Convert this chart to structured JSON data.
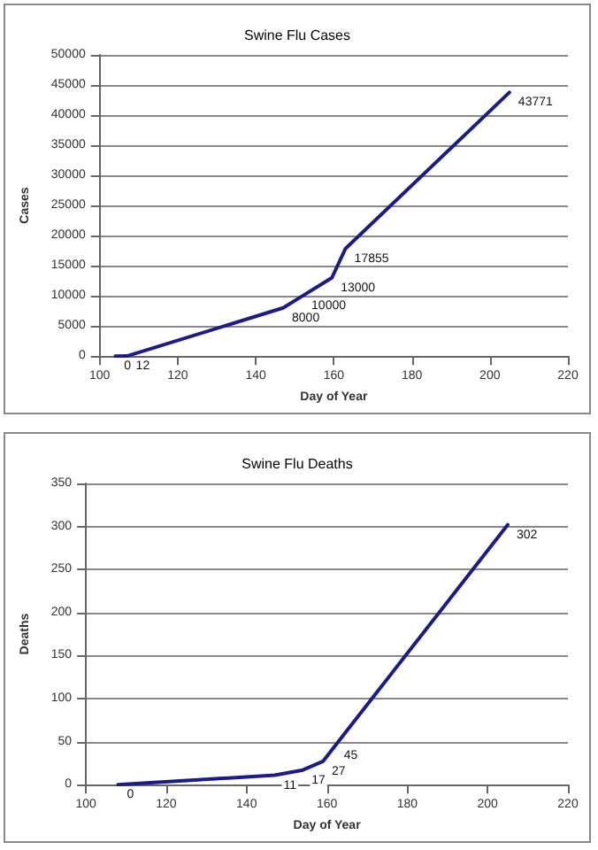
{
  "chart_data": [
    {
      "type": "line",
      "title": "Swine Flu Cases",
      "xlabel": "Day of Year",
      "ylabel": "Cases",
      "x": [
        104,
        107,
        147,
        152,
        159.5,
        163,
        205
      ],
      "series": [
        {
          "color": "#1c1c86",
          "values": [
            0,
            12,
            8000,
            10000,
            13000,
            17855,
            43771
          ]
        }
      ],
      "xlim": [
        100,
        220
      ],
      "xticks": [
        100,
        120,
        140,
        160,
        180,
        200,
        220
      ],
      "ylim": [
        0,
        50000
      ],
      "yticks": [
        0,
        5000,
        10000,
        15000,
        20000,
        25000,
        30000,
        35000,
        40000,
        45000,
        50000
      ],
      "grid": "y",
      "data_labels": true,
      "marker": "none",
      "line_style": "solid"
    },
    {
      "type": "line",
      "title": "Swine Flu Deaths",
      "xlabel": "Day of Year",
      "ylabel": "Deaths",
      "x": [
        108,
        147,
        154,
        159,
        162,
        205
      ],
      "series": [
        {
          "color": "#1c1c86",
          "values": [
            0,
            11,
            17,
            27,
            45,
            302
          ]
        }
      ],
      "xlim": [
        100,
        220
      ],
      "xticks": [
        100,
        120,
        140,
        160,
        180,
        200,
        220
      ],
      "ylim": [
        0,
        350
      ],
      "yticks": [
        0,
        50,
        100,
        150,
        200,
        250,
        300,
        350
      ],
      "grid": "y",
      "data_labels": true,
      "marker": "none",
      "line_style": "solid"
    }
  ]
}
